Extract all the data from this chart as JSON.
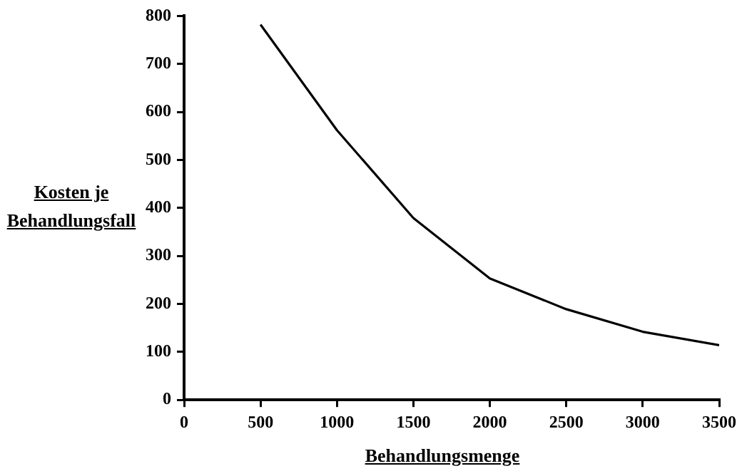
{
  "chart_data": {
    "type": "line",
    "xlabel": "Behandlungsmenge",
    "ylabel": "Kosten je Behandlungsfall",
    "x": [
      500,
      1000,
      1500,
      2000,
      2500,
      3000,
      3500
    ],
    "series": [
      {
        "color": "#000000",
        "values": [
          782,
          562,
          379,
          253,
          189,
          142,
          114
        ]
      }
    ],
    "xlim": [
      0,
      3500
    ],
    "xticks": [
      0,
      500,
      1000,
      1500,
      2000,
      2500,
      3000,
      3500
    ],
    "ylim": [
      0,
      800
    ],
    "yticks": [
      0,
      100,
      200,
      300,
      400,
      500,
      600,
      700,
      800
    ],
    "marker": "none",
    "line_style": "solid"
  }
}
